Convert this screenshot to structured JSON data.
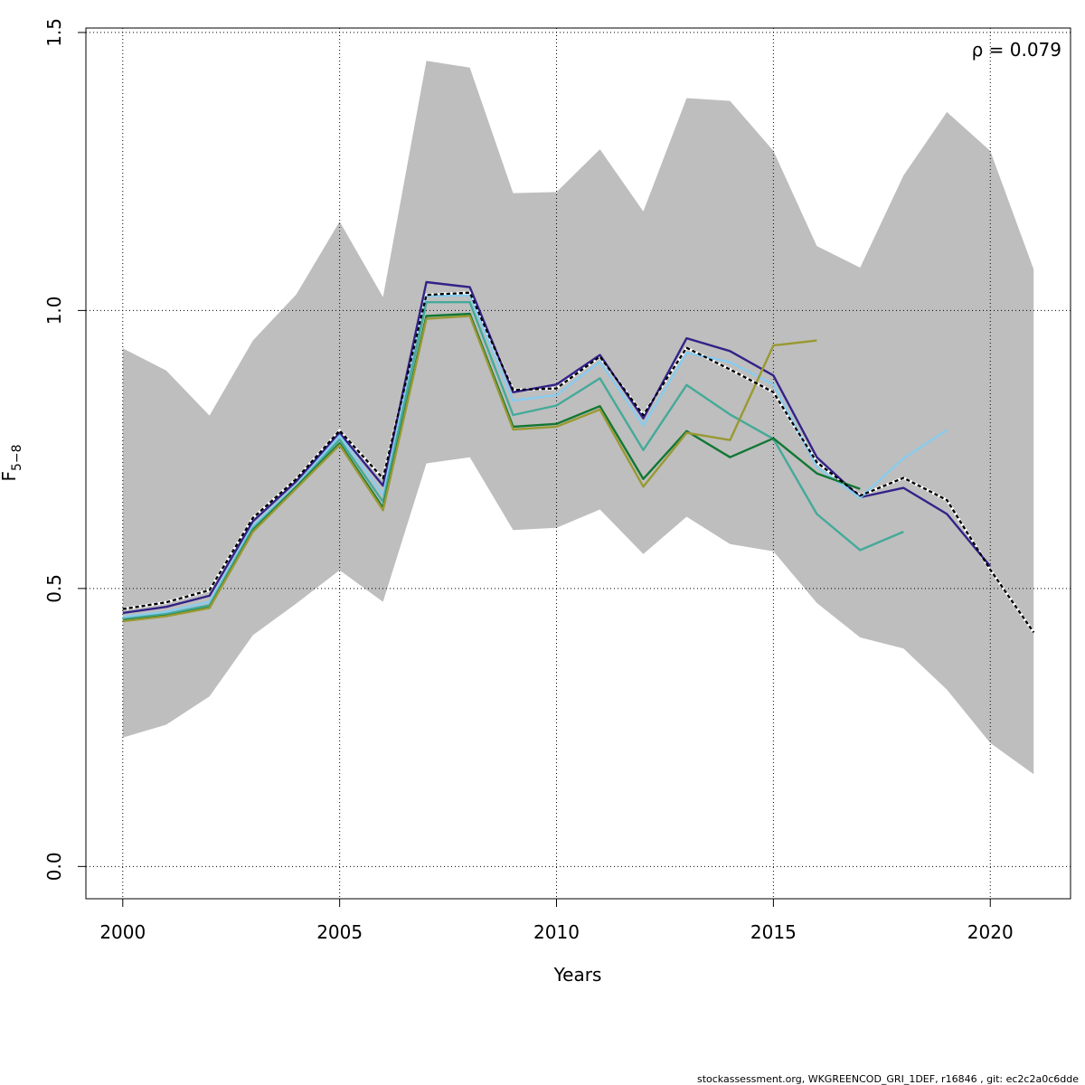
{
  "chart_data": {
    "type": "line",
    "xlabel": "Years",
    "ylabel_main": "F",
    "ylabel_sub": "5−8",
    "annotation": "ρ = 0.079",
    "footer": "stockassessment.org, WKGREENCOD_GRI_1DEF, r16846 , git: ec2c2a0c6dde",
    "xlim": [
      1999.15,
      2021.85
    ],
    "ylim": [
      -0.058,
      1.508
    ],
    "x_ticks": [
      2000,
      2005,
      2010,
      2015,
      2020
    ],
    "x_tick_labels": [
      "2000",
      "2005",
      "2010",
      "2015",
      "2020"
    ],
    "y_ticks": [
      0,
      0.5,
      1,
      1.5
    ],
    "y_tick_labels": [
      "0.0",
      "0.5",
      "1.0",
      "1.5"
    ],
    "grid": true,
    "band": {
      "x": [
        2000,
        2001,
        2002,
        2003,
        2004,
        2005,
        2006,
        2007,
        2008,
        2009,
        2010,
        2011,
        2012,
        2013,
        2014,
        2015,
        2016,
        2017,
        2018,
        2019,
        2020,
        2021
      ],
      "lower": [
        0.232,
        0.255,
        0.306,
        0.416,
        0.473,
        0.533,
        0.476,
        0.725,
        0.736,
        0.605,
        0.609,
        0.642,
        0.562,
        0.629,
        0.58,
        0.567,
        0.474,
        0.412,
        0.392,
        0.318,
        0.222,
        0.166
      ],
      "upper": [
        0.932,
        0.892,
        0.811,
        0.946,
        1.029,
        1.16,
        1.024,
        1.449,
        1.437,
        1.211,
        1.213,
        1.29,
        1.178,
        1.382,
        1.377,
        1.287,
        1.116,
        1.077,
        1.243,
        1.357,
        1.287,
        1.074
      ],
      "color": "#bebebe"
    },
    "series": [
      {
        "color": "#000000",
        "dashed": true,
        "x": [
          2000,
          2001,
          2002,
          2003,
          2004,
          2005,
          2006,
          2007,
          2008,
          2009,
          2010,
          2011,
          2012,
          2013,
          2014,
          2015,
          2016,
          2017,
          2018,
          2019,
          2020,
          2021
        ],
        "values": [
          0.463,
          0.475,
          0.497,
          0.627,
          0.697,
          0.784,
          0.698,
          1.028,
          1.032,
          0.857,
          0.86,
          0.917,
          0.812,
          0.933,
          0.894,
          0.853,
          0.727,
          0.667,
          0.699,
          0.659,
          0.534,
          0.421
        ]
      },
      {
        "color": "#332288",
        "dashed": false,
        "x": [
          2000,
          2001,
          2002,
          2003,
          2004,
          2005,
          2006,
          2007,
          2008,
          2009,
          2010,
          2011,
          2012,
          2013,
          2014,
          2015,
          2016,
          2017,
          2018,
          2019,
          2020
        ],
        "values": [
          0.456,
          0.467,
          0.487,
          0.621,
          0.693,
          0.78,
          0.685,
          1.051,
          1.042,
          0.853,
          0.867,
          0.92,
          0.806,
          0.95,
          0.927,
          0.883,
          0.736,
          0.664,
          0.681,
          0.634,
          0.54
        ]
      },
      {
        "color": "#88ccee",
        "dashed": false,
        "x": [
          2000,
          2001,
          2002,
          2003,
          2004,
          2005,
          2006,
          2007,
          2008,
          2009,
          2010,
          2011,
          2012,
          2013,
          2014,
          2015,
          2016,
          2017,
          2018,
          2019
        ],
        "values": [
          0.449,
          0.458,
          0.476,
          0.613,
          0.686,
          0.775,
          0.669,
          1.026,
          1.027,
          0.838,
          0.848,
          0.908,
          0.793,
          0.924,
          0.907,
          0.867,
          0.719,
          0.663,
          0.734,
          0.785
        ]
      },
      {
        "color": "#44aa99",
        "dashed": false,
        "x": [
          2000,
          2001,
          2002,
          2003,
          2004,
          2005,
          2006,
          2007,
          2008,
          2009,
          2010,
          2011,
          2012,
          2013,
          2014,
          2015,
          2016,
          2017,
          2018
        ],
        "values": [
          0.445,
          0.454,
          0.47,
          0.608,
          0.683,
          0.768,
          0.656,
          1.015,
          1.015,
          0.812,
          0.829,
          0.878,
          0.749,
          0.866,
          0.813,
          0.769,
          0.634,
          0.569,
          0.602
        ]
      },
      {
        "color": "#117733",
        "dashed": false,
        "x": [
          2000,
          2001,
          2002,
          2003,
          2004,
          2005,
          2006,
          2007,
          2008,
          2009,
          2010,
          2011,
          2012,
          2013,
          2014,
          2015,
          2016,
          2017
        ],
        "values": [
          0.442,
          0.451,
          0.466,
          0.604,
          0.682,
          0.761,
          0.645,
          0.99,
          0.994,
          0.791,
          0.796,
          0.828,
          0.697,
          0.783,
          0.736,
          0.77,
          0.707,
          0.679
        ]
      },
      {
        "color": "#999933",
        "dashed": false,
        "x": [
          2000,
          2001,
          2002,
          2003,
          2004,
          2005,
          2006,
          2007,
          2008,
          2009,
          2010,
          2011,
          2012,
          2013,
          2014,
          2015,
          2016
        ],
        "values": [
          0.441,
          0.45,
          0.465,
          0.602,
          0.68,
          0.758,
          0.641,
          0.985,
          0.99,
          0.786,
          0.791,
          0.822,
          0.683,
          0.78,
          0.767,
          0.937,
          0.946
        ]
      }
    ]
  }
}
